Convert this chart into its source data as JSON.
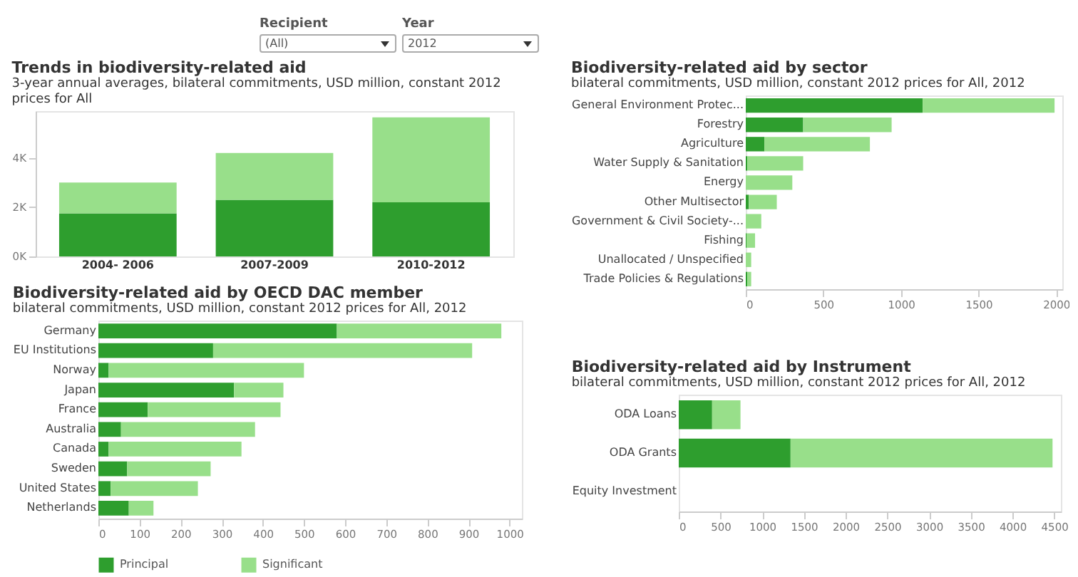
{
  "chart_data": [
    {
      "type": "other",
      "annotations": [
        "Recipient",
        "(All)",
        "Year",
        "2012"
      ]
    },
    {
      "type": "bar",
      "title": "Trends in biodiversity-related aid",
      "subtitle": "3-year annual averages, bilateral commitments, USD million, constant 2012 prices for All",
      "categories": [
        "2004- 2006",
        "2007-2009",
        "2010-2012"
      ],
      "stacked": true,
      "legend": false,
      "series": [
        {
          "color": "#2e9e2e",
          "values": [
            1750,
            2300,
            2200
          ]
        },
        {
          "color": "#98df8a",
          "values": [
            1250,
            1900,
            3450
          ]
        }
      ],
      "ylim": [
        0,
        5900
      ],
      "yticks": [
        {
          "value": 0,
          "label": "0K"
        },
        {
          "value": 2000,
          "label": "2K"
        },
        {
          "value": 4000,
          "label": "4K"
        }
      ]
    },
    {
      "type": "bar",
      "orientation": "horizontal",
      "title": "Biodiversity-related aid by sector",
      "subtitle": "bilateral commitments, USD million, constant 2012 prices for All, 2012",
      "categories": [
        "General Environment Protec...",
        "Forestry",
        "Agriculture",
        "Water Supply & Sanitation",
        "Energy",
        "Other Multisector",
        "Government & Civil Society-...",
        "Fishing",
        "Unallocated / Unspecified",
        "Trade Policies & Regulations"
      ],
      "stacked": true,
      "legend": false,
      "series": [
        {
          "color": "#2e9e2e",
          "values": [
            1140,
            370,
            120,
            10,
            0,
            20,
            0,
            5,
            0,
            10
          ]
        },
        {
          "color": "#98df8a",
          "values": [
            850,
            570,
            680,
            360,
            300,
            180,
            100,
            55,
            35,
            25
          ]
        }
      ],
      "xlim": [
        0,
        2040
      ],
      "xticks": [
        0,
        500,
        1000,
        1500,
        2000
      ]
    },
    {
      "type": "bar",
      "orientation": "horizontal",
      "title": "Biodiversity-related aid by OECD DAC member",
      "subtitle": "bilateral commitments, USD million, constant 2012 prices for All, 2012",
      "categories": [
        "Germany",
        "EU Institutions",
        "Norway",
        "Japan",
        "France",
        "Australia",
        "Canada",
        "Sweden",
        "United States",
        "Netherlands"
      ],
      "stacked": true,
      "legend": "bottom",
      "series": [
        {
          "name": "Principal",
          "color": "#2e9e2e",
          "values": [
            580,
            279,
            25,
            330,
            120,
            55,
            25,
            70,
            30,
            74
          ]
        },
        {
          "name": "Significant",
          "color": "#98df8a",
          "values": [
            400,
            630,
            475,
            120,
            323,
            326,
            323,
            203,
            212,
            60
          ]
        }
      ],
      "xlim": [
        0,
        1030
      ],
      "xticks": [
        0,
        100,
        200,
        300,
        400,
        500,
        600,
        700,
        800,
        900,
        1000
      ]
    },
    {
      "type": "bar",
      "orientation": "horizontal",
      "title": "Biodiversity-related aid by Instrument",
      "subtitle": "bilateral commitments, USD million, constant 2012 prices for All, 2012",
      "categories": [
        "ODA Loans",
        "ODA Grants",
        "Equity Investment"
      ],
      "stacked": true,
      "legend": false,
      "series": [
        {
          "color": "#2e9e2e",
          "values": [
            400,
            1340,
            0
          ]
        },
        {
          "color": "#98df8a",
          "values": [
            340,
            3140,
            0
          ]
        }
      ],
      "xlim": [
        0,
        4580
      ],
      "xticks": [
        0,
        500,
        1000,
        1500,
        2000,
        2500,
        3000,
        3500,
        4000,
        4500
      ]
    }
  ]
}
